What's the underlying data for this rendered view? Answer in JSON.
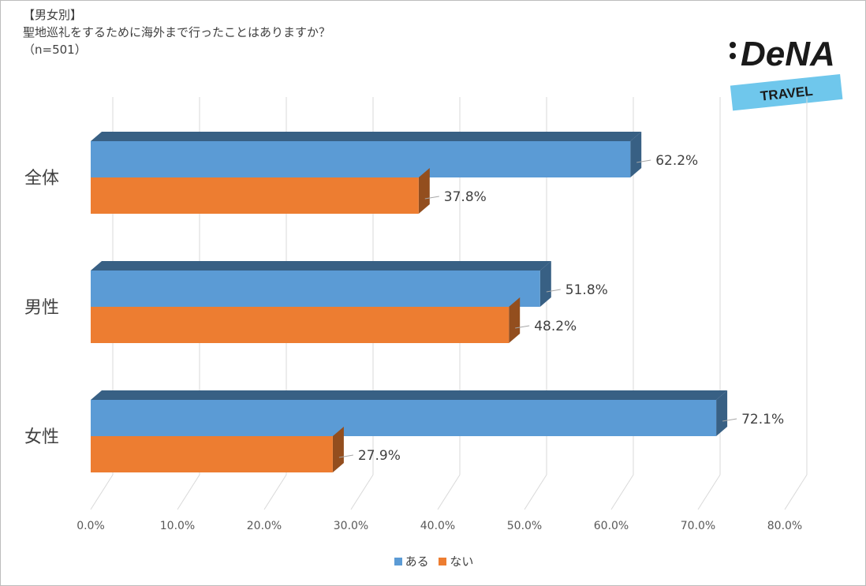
{
  "header": {
    "tag": "【男女別】",
    "question": "聖地巡礼をするために海外まで行ったことはありますか？",
    "sample": "（n=501）"
  },
  "logo": {
    "brand": "DeNA",
    "sub": "TRAVEL"
  },
  "colors": {
    "series_aru": "#5b9bd5",
    "series_nai": "#ed7d31"
  },
  "chart_data": {
    "type": "bar",
    "orientation": "horizontal",
    "style": "3d-clustered",
    "categories": [
      "全体",
      "男性",
      "女性"
    ],
    "series": [
      {
        "name": "ある",
        "values": [
          62.2,
          51.8,
          72.1
        ]
      },
      {
        "name": "ない",
        "values": [
          37.8,
          48.2,
          27.9
        ]
      }
    ],
    "data_labels": [
      [
        "62.2%",
        "51.8%",
        "72.1%"
      ],
      [
        "37.8%",
        "48.2%",
        "27.9%"
      ]
    ],
    "x_ticks": [
      "0.0%",
      "10.0%",
      "20.0%",
      "30.0%",
      "40.0%",
      "50.0%",
      "60.0%",
      "70.0%",
      "80.0%"
    ],
    "xlim": [
      0,
      80
    ],
    "grid": true,
    "legend": "bottom"
  }
}
